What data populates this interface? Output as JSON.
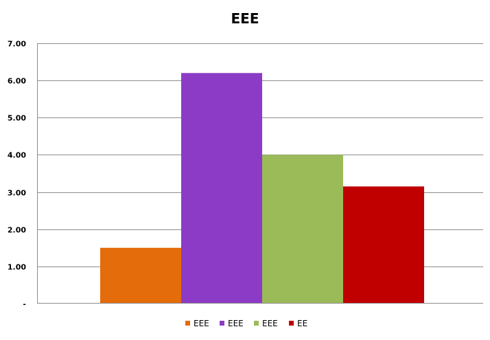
{
  "chart_data": {
    "type": "bar",
    "title": "EEE",
    "categories": [
      ""
    ],
    "series": [
      {
        "name": "EEE",
        "values": [
          1.5
        ],
        "color": "#E46C0A"
      },
      {
        "name": "EEE",
        "values": [
          6.2
        ],
        "color": "#8B3BC6"
      },
      {
        "name": "EEE",
        "values": [
          4.0
        ],
        "color": "#9BBB59"
      },
      {
        "name": "EE",
        "values": [
          3.15
        ],
        "color": "#C00000"
      }
    ],
    "ylim": [
      0,
      7
    ],
    "yticks": [
      {
        "value": 0,
        "label": "-"
      },
      {
        "value": 1,
        "label": "1.00"
      },
      {
        "value": 2,
        "label": "2.00"
      },
      {
        "value": 3,
        "label": "3.00"
      },
      {
        "value": 4,
        "label": "4.00"
      },
      {
        "value": 5,
        "label": "5.00"
      },
      {
        "value": 6,
        "label": "6.00"
      },
      {
        "value": 7,
        "label": "7.00"
      }
    ],
    "grid": true,
    "legend_position": "bottom",
    "xlabel": "",
    "ylabel": ""
  }
}
